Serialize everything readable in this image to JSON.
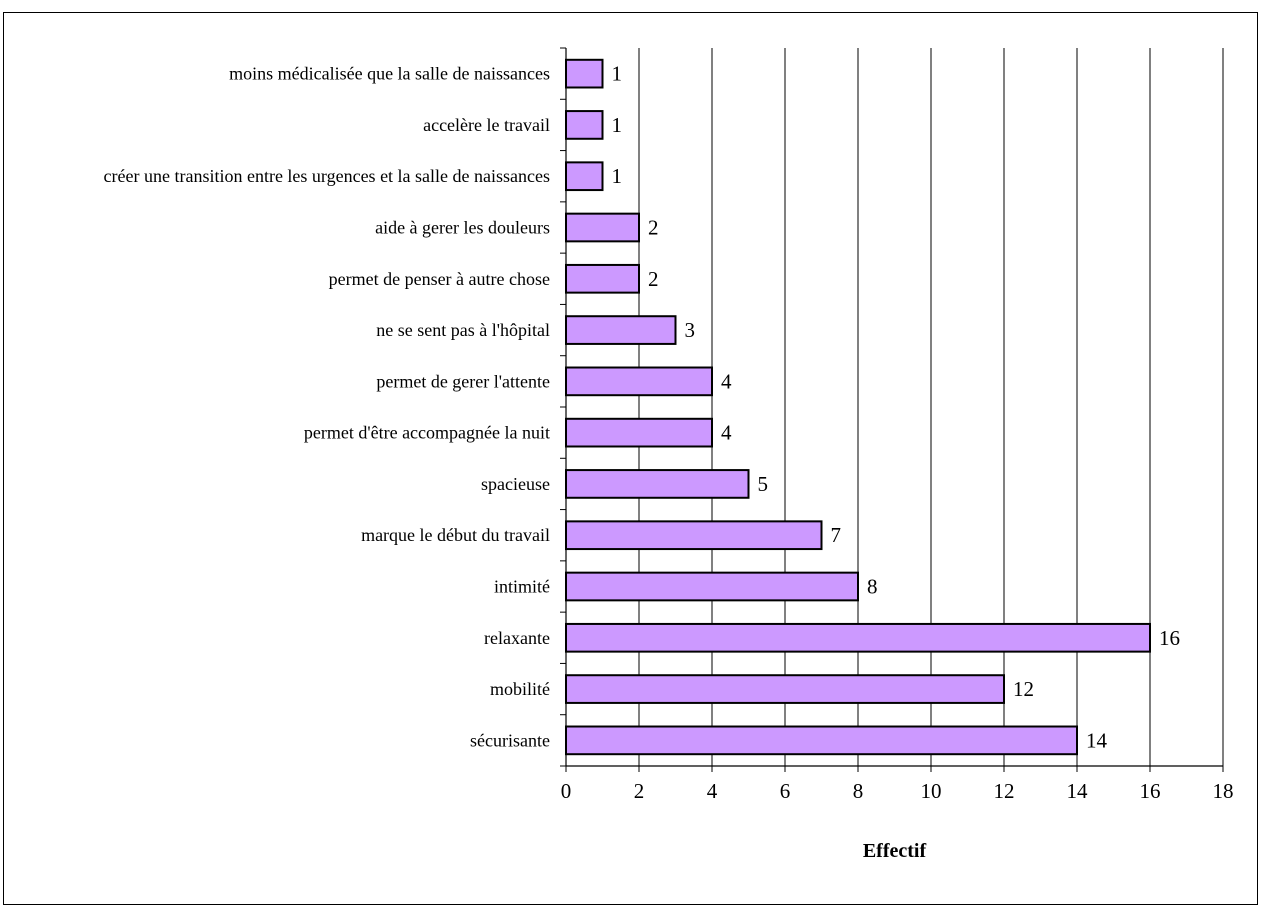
{
  "chart_data": {
    "type": "bar",
    "orientation": "horizontal",
    "categories": [
      "sécurisante",
      "mobilité",
      "relaxante",
      "intimité",
      "marque le début du travail",
      "spacieuse",
      "permet d'être accompagnée la nuit",
      "permet de gerer l'attente",
      "ne se sent pas à l'hôpital",
      "permet de penser à autre chose",
      "aide à gerer les douleurs",
      "créer une transition entre les urgences et la salle de naissances",
      "accelère le travail",
      "moins médicalisée que la salle de naissances"
    ],
    "values": [
      14,
      12,
      16,
      8,
      7,
      5,
      4,
      4,
      3,
      2,
      2,
      1,
      1,
      1
    ],
    "xlabel": "Effectif",
    "ylabel": "",
    "xlim": [
      0,
      18
    ],
    "xticks": [
      0,
      2,
      4,
      6,
      8,
      10,
      12,
      14,
      16,
      18
    ],
    "grid": "vertical major gridlines",
    "legend": "none",
    "data_labels": true,
    "colors": {
      "bar_fill": "#cc99ff",
      "bar_stroke": "#000000",
      "grid": "#000000"
    }
  }
}
